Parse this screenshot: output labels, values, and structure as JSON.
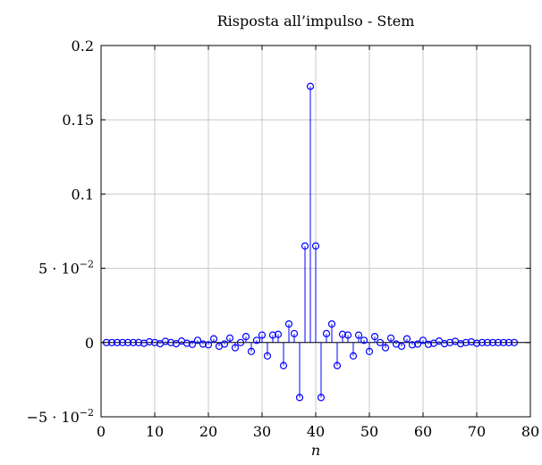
{
  "chart_data": {
    "type": "stem",
    "title": "Risposta all’impulso - Stem",
    "xlabel": "n",
    "ylabel": "",
    "xlim": [
      0,
      80
    ],
    "ylim": [
      -0.05,
      0.2
    ],
    "x_ticks": [
      "0",
      "10",
      "20",
      "30",
      "40",
      "50",
      "60",
      "70",
      "80"
    ],
    "y_ticks": [
      {
        "value": -0.05,
        "mantissa": "−5",
        "exponent": "−2",
        "label": "−5·10⁻²"
      },
      {
        "value": 0,
        "label": "0"
      },
      {
        "value": 0.05,
        "mantissa": "5",
        "exponent": "−2",
        "label": "5·10⁻²"
      },
      {
        "value": 0.1,
        "label": "0.1"
      },
      {
        "value": 0.15,
        "label": "0.15"
      },
      {
        "value": 0.2,
        "label": "0.2"
      }
    ],
    "grid": true,
    "series": [
      {
        "color": "#0000ff",
        "marker": "circle-open",
        "x": [
          1,
          2,
          3,
          4,
          5,
          6,
          7,
          8,
          9,
          10,
          11,
          12,
          13,
          14,
          15,
          16,
          17,
          18,
          19,
          20,
          21,
          22,
          23,
          24,
          25,
          26,
          27,
          28,
          29,
          30,
          31,
          32,
          33,
          34,
          35,
          36,
          37,
          38,
          39,
          40,
          41,
          42,
          43,
          44,
          45,
          46,
          47,
          48,
          49,
          50,
          51,
          52,
          53,
          54,
          55,
          56,
          57,
          58,
          59,
          60,
          61,
          62,
          63,
          64,
          65,
          66,
          67,
          68,
          69,
          70,
          71,
          72,
          73,
          74,
          75,
          76,
          77
        ],
        "y": [
          0.0,
          0.0,
          0.0,
          0.0,
          0.0,
          0.0,
          0.0,
          -0.0005,
          0.0005,
          0.0,
          -0.0008,
          0.0008,
          0.0,
          -0.0008,
          0.001,
          -0.0005,
          -0.0012,
          0.0015,
          -0.001,
          -0.0015,
          0.0025,
          -0.0025,
          -0.001,
          0.003,
          -0.0035,
          0.0,
          0.004,
          -0.006,
          0.0015,
          0.005,
          -0.009,
          0.005,
          0.0055,
          -0.0155,
          0.0125,
          0.006,
          -0.037,
          0.065,
          0.1725,
          0.065,
          -0.037,
          0.006,
          0.0125,
          -0.0155,
          0.0055,
          0.005,
          -0.009,
          0.005,
          0.0015,
          -0.006,
          0.004,
          0.0,
          -0.0035,
          0.003,
          -0.001,
          -0.0025,
          0.0025,
          -0.0015,
          -0.001,
          0.0015,
          -0.0012,
          -0.0005,
          0.001,
          -0.0008,
          0.0,
          0.0008,
          -0.0008,
          0.0,
          0.0005,
          -0.0005,
          0.0,
          0.0,
          0.0,
          0.0,
          0.0,
          0.0,
          0.0
        ]
      }
    ]
  }
}
